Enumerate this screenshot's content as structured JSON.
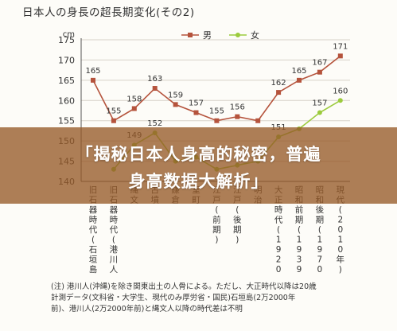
{
  "header": {
    "title": "日本人の身長の超長期変化(その2)"
  },
  "banner": {
    "line1": "「揭秘日本人身高的秘密，普遍",
    "line2": "身高数据大解析」"
  },
  "note": {
    "line1": "(注) 港川人(沖縄)を除き関東出土の人骨による。ただし、大正時代以降は20歳",
    "line2": "計測データ(文科省・大学生、現代のみ厚労省・国民)石垣島(2万2000年",
    "line3": "前)、港川人(2万2000年前)と縄文人以降の時代差は不明"
  },
  "chart_data": {
    "type": "line",
    "ylabel": "cm",
    "ylim": [
      140,
      175
    ],
    "yticks": [
      140,
      145,
      150,
      155,
      160,
      165,
      170,
      175
    ],
    "categories": [
      "旧石器時代(石垣島)",
      "旧石器時代(港川人)",
      "縄文",
      "古墳",
      "鎌倉",
      "室町",
      "江戸(前期)",
      "江戸(後期)",
      "明治",
      "大正時代(1920年)",
      "昭和前期(1939年)",
      "昭和後期(1970年)",
      "現代(2010年)"
    ],
    "series": [
      {
        "name": "男",
        "color": "#b5533c",
        "values": [
          165,
          155,
          158,
          163,
          159,
          157,
          155,
          156,
          155,
          162,
          165,
          167,
          171
        ],
        "labels": [
          "165",
          "155",
          "158",
          "163",
          "159",
          "157",
          "155",
          "156",
          "",
          "162",
          "165",
          "167",
          "171"
        ]
      },
      {
        "name": "女",
        "color": "#9ccb3d",
        "values": [
          null,
          143,
          149,
          152,
          145,
          146,
          143,
          144,
          145,
          151,
          153,
          157,
          160
        ],
        "labels": [
          "",
          "",
          "149",
          "152",
          "",
          "",
          "",
          "",
          "",
          "151",
          "",
          "157",
          "160"
        ]
      }
    ]
  }
}
